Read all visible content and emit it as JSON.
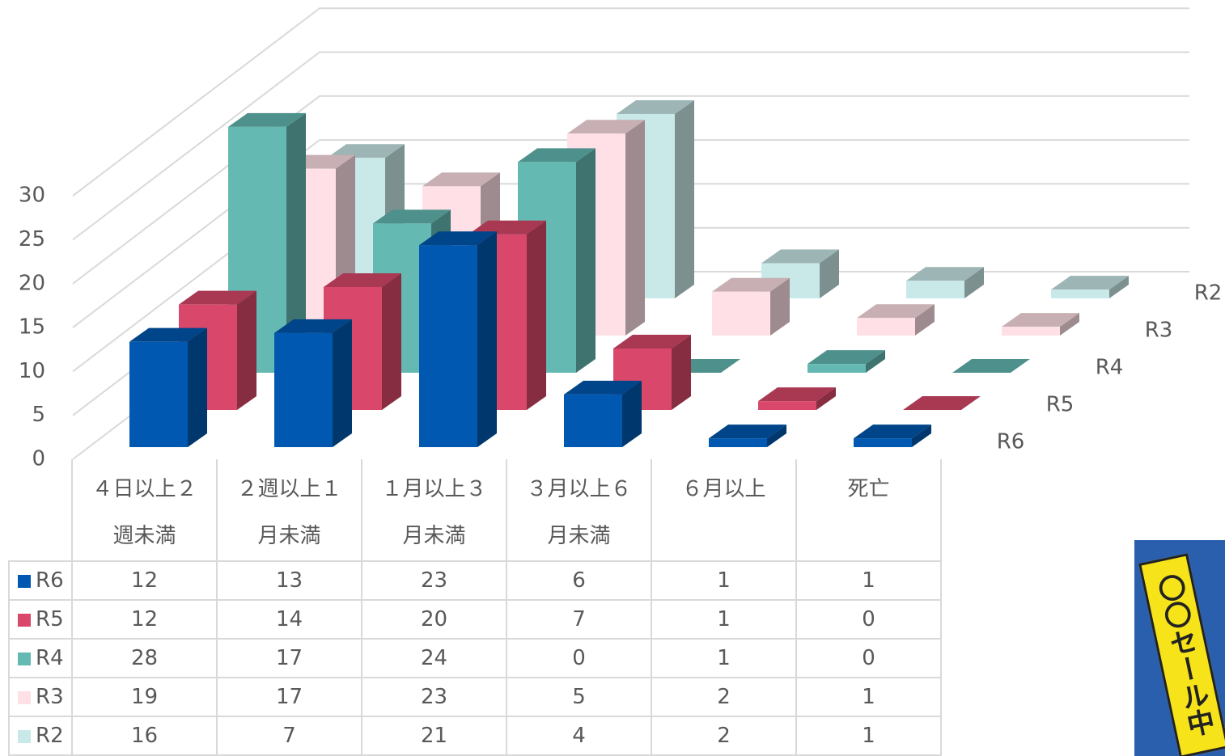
{
  "chart_data": {
    "type": "bar3d",
    "categories": [
      "４日以上２週未満",
      "２週以上１月未満",
      "１月以上３月未満",
      "３月以上６月未満",
      "６月以上",
      "死亡"
    ],
    "series": [
      {
        "name": "R6",
        "color": "#0058b0",
        "values": [
          12,
          13,
          23,
          6,
          1,
          1
        ]
      },
      {
        "name": "R5",
        "color": "#d9486a",
        "values": [
          12,
          14,
          20,
          7,
          1,
          0
        ]
      },
      {
        "name": "R4",
        "color": "#64bab3",
        "values": [
          28,
          17,
          24,
          0,
          1,
          0
        ]
      },
      {
        "name": "R3",
        "color": "#ffe0e6",
        "values": [
          19,
          17,
          23,
          5,
          2,
          1
        ]
      },
      {
        "name": "R2",
        "color": "#c9e8e8",
        "values": [
          16,
          7,
          21,
          4,
          2,
          1
        ]
      }
    ],
    "ylim": [
      0,
      30
    ],
    "yticks": [
      0,
      5,
      10,
      15,
      20,
      25,
      30
    ],
    "grid": true,
    "data_table": true
  },
  "banner": "〇〇セール中"
}
